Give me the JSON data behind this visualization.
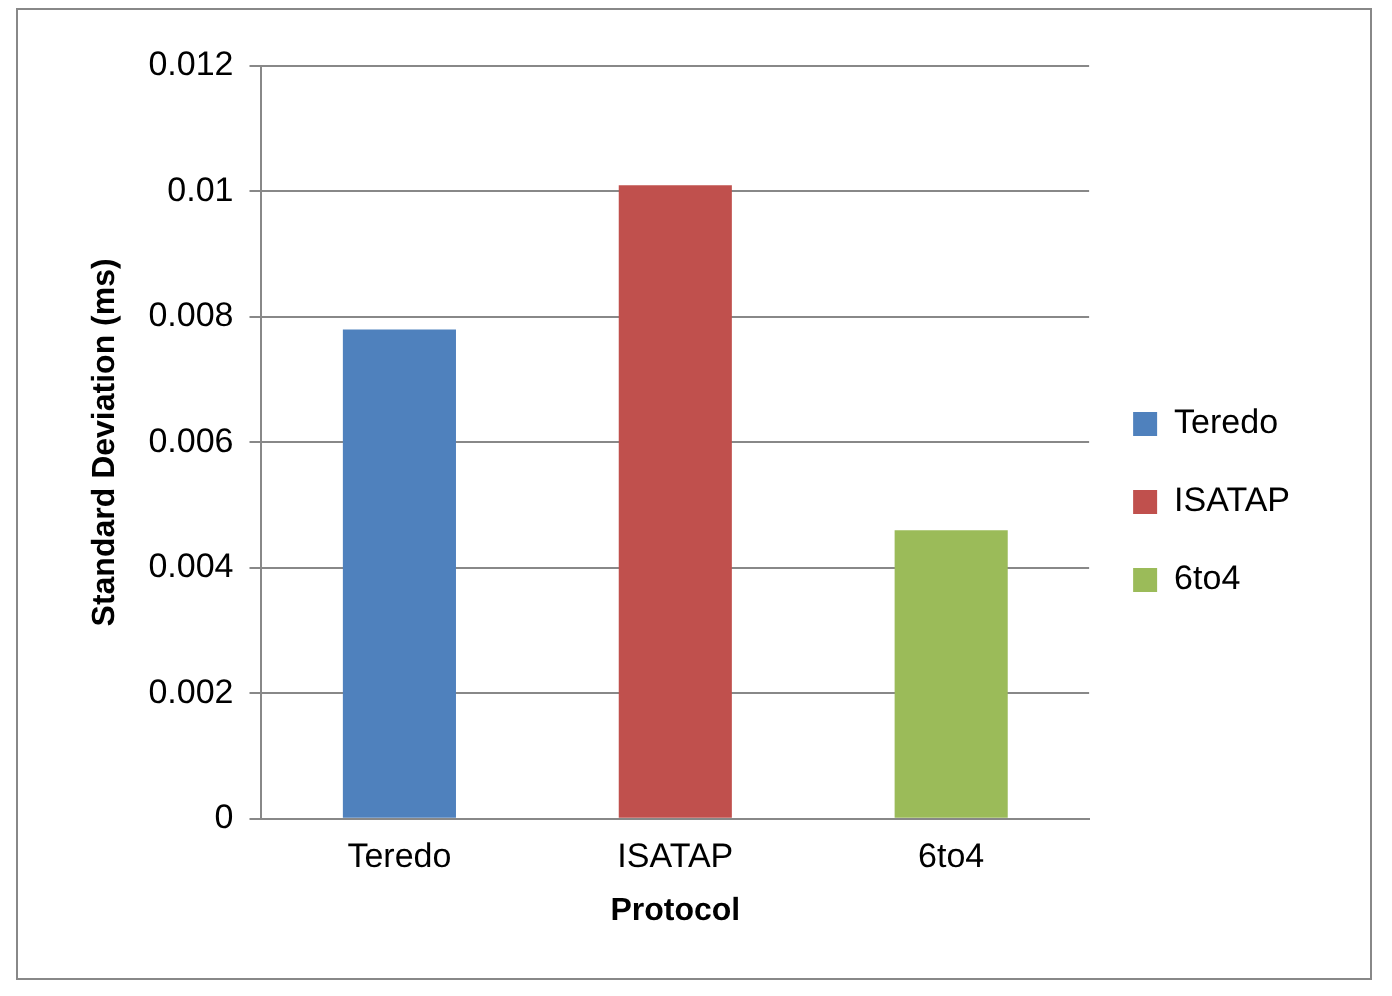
{
  "chart_data": {
    "type": "bar",
    "xlabel": "Protocol",
    "ylabel": "Standard Deviation (ms)",
    "categories": [
      "Teredo",
      "ISATAP",
      "6to4"
    ],
    "series": [
      {
        "name": "Teredo",
        "color": "#4f81bd",
        "values": [
          0.0078,
          null,
          null
        ]
      },
      {
        "name": "ISATAP",
        "color": "#c0504d",
        "values": [
          null,
          0.0101,
          null
        ]
      },
      {
        "name": "6to4",
        "color": "#9bbb59",
        "values": [
          null,
          null,
          0.0046
        ]
      }
    ],
    "ylim": [
      0,
      0.012
    ],
    "yticks": [
      0,
      0.002,
      0.004,
      0.006,
      0.008,
      0.01,
      0.012
    ],
    "grid": "y",
    "legend": "right"
  }
}
